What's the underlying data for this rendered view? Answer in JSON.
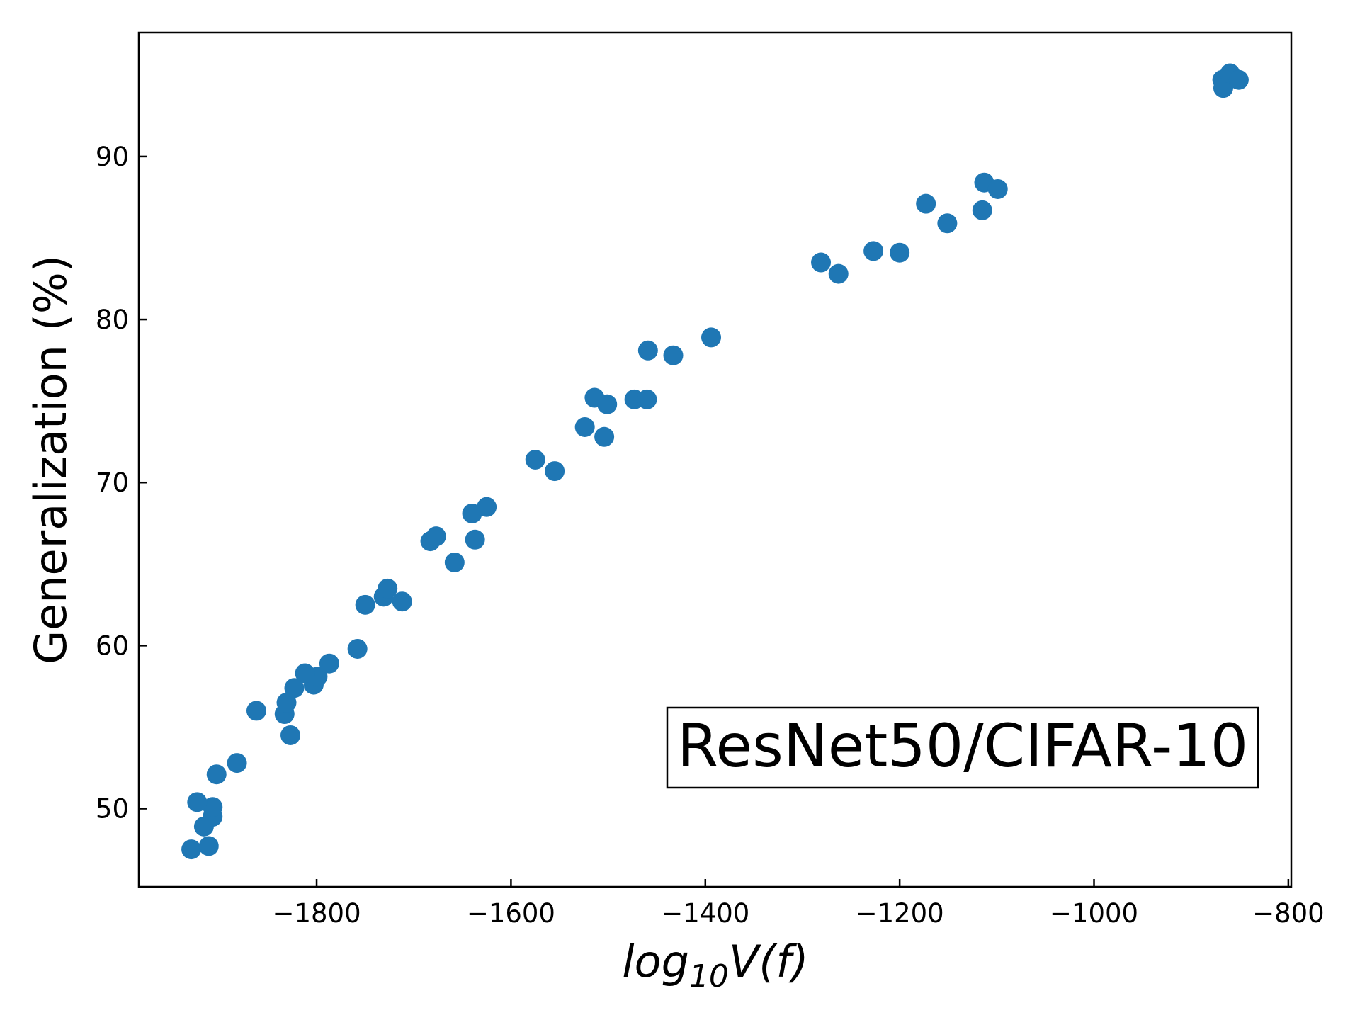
{
  "chart_data": {
    "type": "scatter",
    "title": "",
    "xlabel": {
      "base": "log",
      "subscript": "10",
      "tail": "V(f)"
    },
    "ylabel": "Generalization (%)",
    "xlim": [
      -1983,
      -797
    ],
    "ylim": [
      45.2,
      97.6
    ],
    "xticks": [
      -1800,
      -1600,
      -1400,
      -1200,
      -1000,
      -800
    ],
    "xtick_labels": [
      "−1800",
      "−1600",
      "−1400",
      "−1200",
      "−1000",
      "−800"
    ],
    "yticks": [
      50,
      60,
      70,
      80,
      90
    ],
    "ytick_labels": [
      "50",
      "60",
      "70",
      "80",
      "90"
    ],
    "grid": false,
    "legend": "none",
    "annotation": {
      "text": "ResNet50/CIFAR-10",
      "placement": "bottom-right"
    },
    "marker_color": "#1f77b4",
    "series": [
      {
        "points": [
          [
            -1929,
            47.5
          ],
          [
            -1911,
            47.7
          ],
          [
            -1916,
            48.9
          ],
          [
            -1907,
            49.5
          ],
          [
            -1907,
            50.1
          ],
          [
            -1923,
            50.4
          ],
          [
            -1903,
            52.1
          ],
          [
            -1882,
            52.8
          ],
          [
            -1827,
            54.5
          ],
          [
            -1833,
            55.8
          ],
          [
            -1862,
            56.0
          ],
          [
            -1831,
            56.5
          ],
          [
            -1823,
            57.4
          ],
          [
            -1803,
            57.6
          ],
          [
            -1799,
            58.1
          ],
          [
            -1812,
            58.3
          ],
          [
            -1787,
            58.9
          ],
          [
            -1758,
            59.8
          ],
          [
            -1750,
            62.5
          ],
          [
            -1731,
            63.0
          ],
          [
            -1727,
            63.5
          ],
          [
            -1712,
            62.7
          ],
          [
            -1683,
            66.4
          ],
          [
            -1677,
            66.7
          ],
          [
            -1658,
            65.1
          ],
          [
            -1637,
            66.5
          ],
          [
            -1640,
            68.1
          ],
          [
            -1625,
            68.5
          ],
          [
            -1575,
            71.4
          ],
          [
            -1555,
            70.7
          ],
          [
            -1524,
            73.4
          ],
          [
            -1504,
            72.8
          ],
          [
            -1514,
            75.2
          ],
          [
            -1501,
            74.8
          ],
          [
            -1473,
            75.1
          ],
          [
            -1460,
            75.1
          ],
          [
            -1459,
            78.1
          ],
          [
            -1433,
            77.8
          ],
          [
            -1394,
            78.9
          ],
          [
            -1281,
            83.5
          ],
          [
            -1263,
            82.8
          ],
          [
            -1227,
            84.2
          ],
          [
            -1200,
            84.1
          ],
          [
            -1173,
            87.1
          ],
          [
            -1151,
            85.9
          ],
          [
            -1115,
            86.7
          ],
          [
            -1113,
            88.4
          ],
          [
            -1099,
            88.0
          ],
          [
            -868,
            94.7
          ],
          [
            -867,
            94.2
          ],
          [
            -860,
            95.1
          ],
          [
            -851,
            94.7
          ]
        ]
      }
    ]
  }
}
